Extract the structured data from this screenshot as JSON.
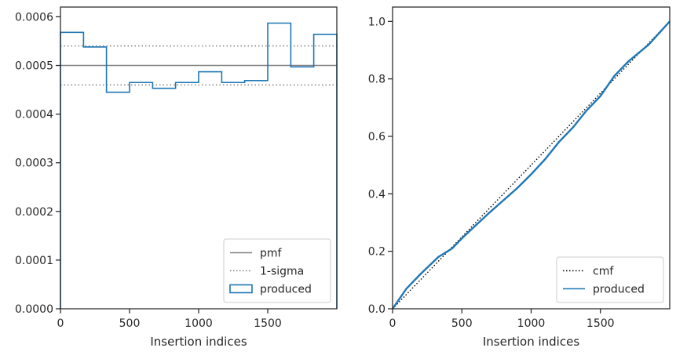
{
  "chart_data": [
    {
      "type": "line",
      "subtype": "step-histogram",
      "xlabel": "Insertion indices",
      "ylabel": "",
      "xlim": [
        0,
        2000
      ],
      "ylim": [
        0,
        0.00062
      ],
      "xticks": [
        0,
        500,
        1000,
        1500
      ],
      "xtick_labels": [
        "0",
        "500",
        "1000",
        "1500"
      ],
      "yticks": [
        0,
        0.0001,
        0.0002,
        0.0003,
        0.0004,
        0.0005,
        0.0006
      ],
      "ytick_labels": [
        "0.0000",
        "0.0001",
        "0.0002",
        "0.0003",
        "0.0004",
        "0.0005",
        "0.0006"
      ],
      "grid": false,
      "legend_position": "lower-right",
      "legend": [
        "pmf",
        "1-sigma",
        "produced"
      ],
      "series": [
        {
          "name": "pmf",
          "style": "solid",
          "color": "#808080",
          "y": 0.0005
        },
        {
          "name": "1-sigma",
          "style": "dotted",
          "color": "#808080",
          "y_values": [
            0.00054,
            0.00046
          ]
        },
        {
          "name": "produced",
          "style": "step",
          "color": "#1f77b4",
          "bin_edges": [
            0,
            167,
            333,
            500,
            667,
            833,
            1000,
            1167,
            1333,
            1500,
            1667,
            1833,
            2000
          ],
          "values": [
            0.000568,
            0.000538,
            0.000445,
            0.000465,
            0.000453,
            0.000465,
            0.000487,
            0.000465,
            0.000469,
            0.000587,
            0.000497,
            0.000564
          ]
        }
      ]
    },
    {
      "type": "line",
      "xlabel": "Insertion indices",
      "ylabel": "",
      "xlim": [
        0,
        2000
      ],
      "ylim": [
        0,
        1.05
      ],
      "xticks": [
        0,
        500,
        1000,
        1500
      ],
      "xtick_labels": [
        "0",
        "500",
        "1000",
        "1500"
      ],
      "yticks": [
        0,
        0.2,
        0.4,
        0.6,
        0.8,
        1.0
      ],
      "ytick_labels": [
        "0.0",
        "0.2",
        "0.4",
        "0.6",
        "0.8",
        "1.0"
      ],
      "grid": false,
      "legend_position": "lower-right",
      "legend": [
        "cmf",
        "produced"
      ],
      "series": [
        {
          "name": "cmf",
          "style": "dotted",
          "color": "#000000",
          "x": [
            0,
            2000
          ],
          "y": [
            0,
            1
          ]
        },
        {
          "name": "produced",
          "style": "solid",
          "color": "#1f77b4",
          "x": [
            0,
            100,
            200,
            330,
            430,
            500,
            700,
            900,
            1000,
            1100,
            1200,
            1300,
            1400,
            1500,
            1600,
            1700,
            1850,
            2000
          ],
          "y": [
            0,
            0.07,
            0.12,
            0.18,
            0.21,
            0.245,
            0.335,
            0.42,
            0.468,
            0.52,
            0.58,
            0.63,
            0.69,
            0.74,
            0.81,
            0.86,
            0.92,
            1.0
          ]
        }
      ]
    }
  ]
}
